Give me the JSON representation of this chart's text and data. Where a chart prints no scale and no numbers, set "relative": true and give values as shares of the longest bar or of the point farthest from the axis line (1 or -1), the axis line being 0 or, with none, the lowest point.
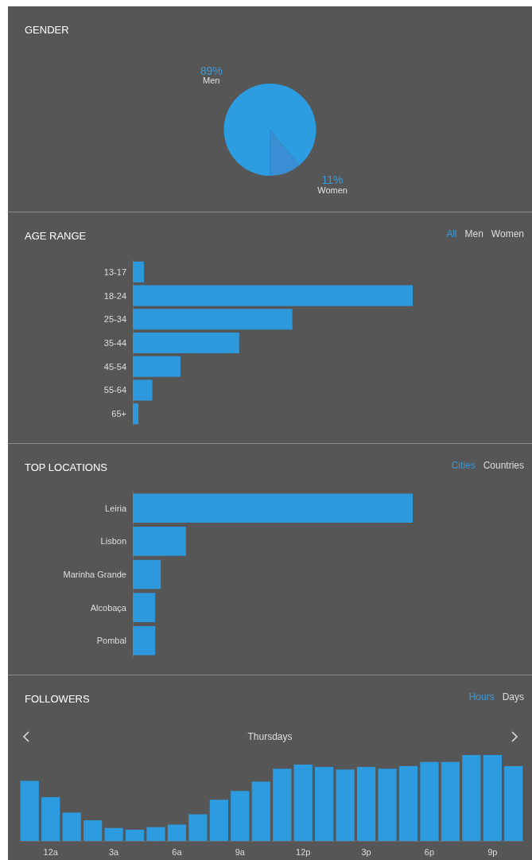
{
  "chart_data": [
    {
      "type": "pie",
      "title": "GENDER",
      "categories": [
        "Men",
        "Women"
      ],
      "values": [
        89,
        11
      ],
      "value_labels": [
        "89%",
        "11%"
      ],
      "colors": [
        "#2b9de0",
        "#3a8ed4"
      ],
      "legend": false
    },
    {
      "type": "bar",
      "orientation": "horizontal",
      "relative": true,
      "title": "AGE RANGE",
      "annotations": [
        "All",
        "Men",
        "Women"
      ],
      "categories": [
        "13-17",
        "18-24",
        "25-34",
        "35-44",
        "45-54",
        "55-64",
        "65+"
      ],
      "values": [
        0.04,
        1,
        0.57,
        0.38,
        0.17,
        0.07,
        0.02
      ],
      "color": "#2e98dc",
      "legend": false
    },
    {
      "type": "bar",
      "orientation": "horizontal",
      "relative": true,
      "title": "TOP LOCATIONS",
      "annotations": [
        "Cities",
        "Countries"
      ],
      "categories": [
        "Leiria",
        "Lisbon",
        "Marinha Grande",
        "Alcobaça",
        "Pombal"
      ],
      "values": [
        1,
        0.19,
        0.1,
        0.08,
        0.08
      ],
      "color": "#2e98dc",
      "legend": false
    },
    {
      "type": "bar",
      "relative": true,
      "title": "FOLLOWERS",
      "subtitle": "Thursdays",
      "annotations": [
        "Hours",
        "Days"
      ],
      "categories": [
        null,
        "12a",
        null,
        null,
        "3a",
        null,
        null,
        "6a",
        null,
        null,
        "9a",
        null,
        null,
        "12p",
        null,
        null,
        "3p",
        null,
        null,
        "6p",
        null,
        null,
        "9p",
        null
      ],
      "values": [
        0.7,
        0.51,
        0.33,
        0.24,
        0.15,
        0.13,
        0.16,
        0.19,
        0.31,
        0.48,
        0.58,
        0.69,
        0.84,
        0.89,
        0.86,
        0.83,
        0.86,
        0.84,
        0.87,
        0.92,
        0.92,
        1,
        1,
        0.87
      ],
      "color": "#2c9be0",
      "legend": false
    }
  ]
}
